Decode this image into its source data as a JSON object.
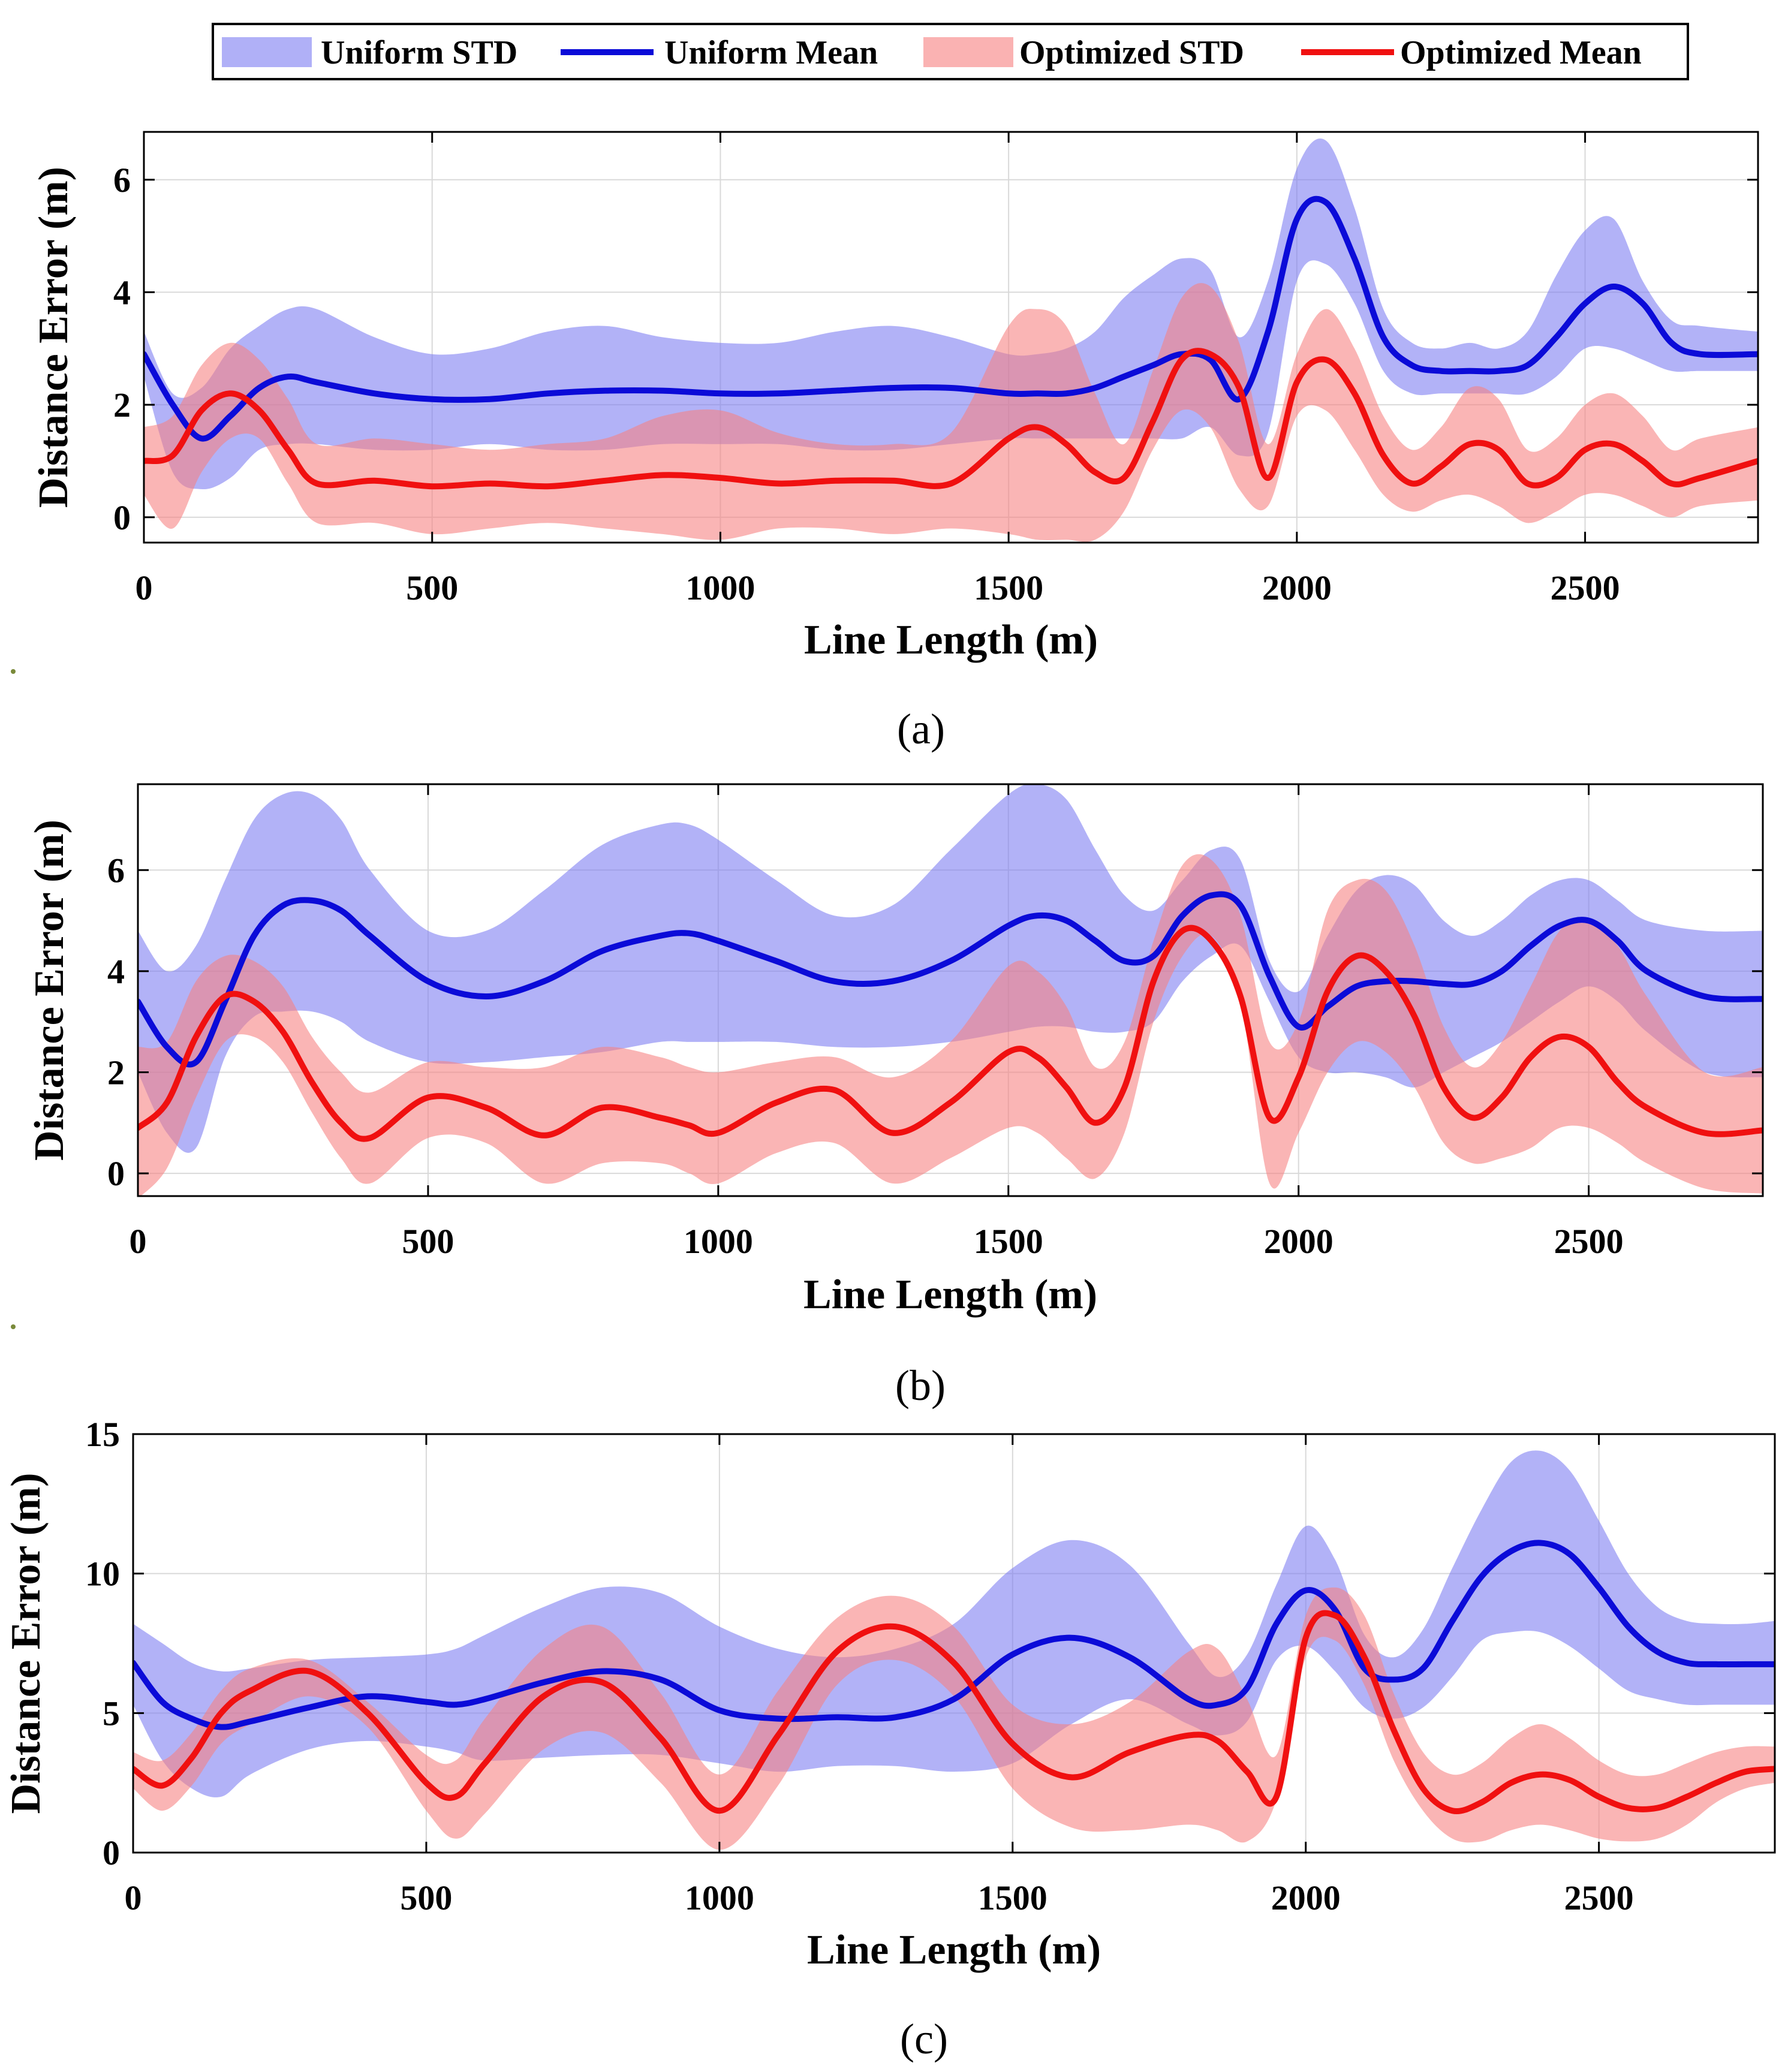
{
  "legend": {
    "items": [
      {
        "label": "Uniform STD",
        "kind": "band",
        "color": "#7b7bf2"
      },
      {
        "label": "Uniform Mean",
        "kind": "line",
        "color": "#0b0bd8"
      },
      {
        "label": "Optimized STD",
        "kind": "band",
        "color": "#f77f7f"
      },
      {
        "label": "Optimized Mean",
        "kind": "line",
        "color": "#f01010"
      }
    ]
  },
  "colors": {
    "uniform_band": "#7b7bf2",
    "uniform_line": "#0b0bd8",
    "optimized_band": "#f77f7f",
    "optimized_line": "#f01010"
  },
  "chart_data": [
    {
      "type": "area",
      "panel_label": "(a)",
      "xlabel": "Line Length (m)",
      "ylabel": "Distance Error (m)",
      "xlim": [
        0,
        2800
      ],
      "ylim": [
        -0.45,
        6.85
      ],
      "xticks": [
        0,
        500,
        1000,
        1500,
        2000,
        2500
      ],
      "yticks": [
        0,
        2,
        4,
        6
      ],
      "grid": true,
      "x": [
        0,
        50,
        100,
        150,
        200,
        250,
        300,
        400,
        500,
        600,
        700,
        800,
        900,
        1000,
        1100,
        1200,
        1300,
        1400,
        1500,
        1550,
        1600,
        1650,
        1700,
        1750,
        1800,
        1850,
        1900,
        1950,
        2000,
        2050,
        2100,
        2150,
        2200,
        2250,
        2300,
        2350,
        2400,
        2450,
        2500,
        2550,
        2600,
        2650,
        2700,
        2800
      ],
      "series": [
        {
          "name": "Uniform STD",
          "kind": "band",
          "upper": [
            3.3,
            2.2,
            2.3,
            3.0,
            3.4,
            3.7,
            3.7,
            3.2,
            2.9,
            3.0,
            3.3,
            3.4,
            3.2,
            3.1,
            3.1,
            3.3,
            3.4,
            3.2,
            2.9,
            2.9,
            3.0,
            3.3,
            3.9,
            4.3,
            4.6,
            4.4,
            3.2,
            4.2,
            6.2,
            6.7,
            5.5,
            3.7,
            3.1,
            3.0,
            3.1,
            3.0,
            3.3,
            4.3,
            5.1,
            5.3,
            4.2,
            3.5,
            3.4,
            3.3
          ],
          "lower": [
            2.5,
            0.8,
            0.5,
            0.7,
            1.2,
            1.3,
            1.3,
            1.2,
            1.2,
            1.3,
            1.2,
            1.2,
            1.3,
            1.3,
            1.3,
            1.2,
            1.2,
            1.3,
            1.4,
            1.4,
            1.4,
            1.4,
            1.4,
            1.4,
            1.4,
            1.6,
            1.1,
            1.5,
            4.2,
            4.5,
            3.8,
            2.6,
            2.2,
            2.2,
            2.2,
            2.2,
            2.2,
            2.5,
            3.0,
            3.0,
            2.8,
            2.6,
            2.6,
            2.6
          ]
        },
        {
          "name": "Uniform Mean",
          "kind": "line",
          "values": [
            2.9,
            2.0,
            1.4,
            1.8,
            2.3,
            2.5,
            2.4,
            2.2,
            2.1,
            2.1,
            2.2,
            2.25,
            2.25,
            2.2,
            2.2,
            2.25,
            2.3,
            2.3,
            2.2,
            2.2,
            2.2,
            2.3,
            2.5,
            2.7,
            2.9,
            2.8,
            2.1,
            3.3,
            5.3,
            5.6,
            4.6,
            3.2,
            2.7,
            2.6,
            2.6,
            2.6,
            2.7,
            3.2,
            3.8,
            4.1,
            3.8,
            3.1,
            2.9,
            2.9
          ]
        },
        {
          "name": "Optimized STD",
          "kind": "band",
          "upper": [
            1.6,
            1.8,
            2.7,
            3.1,
            2.8,
            2.1,
            1.3,
            1.4,
            1.3,
            1.2,
            1.3,
            1.4,
            1.8,
            1.9,
            1.5,
            1.3,
            1.3,
            1.5,
            3.4,
            3.7,
            3.4,
            2.2,
            1.3,
            2.6,
            3.9,
            4.1,
            3.1,
            1.3,
            2.9,
            3.7,
            3.0,
            1.8,
            1.2,
            1.6,
            2.3,
            2.1,
            1.2,
            1.4,
            2.0,
            2.2,
            1.8,
            1.2,
            1.4,
            1.6
          ],
          "lower": [
            0.4,
            -0.2,
            0.8,
            1.4,
            1.4,
            0.6,
            -0.1,
            -0.1,
            -0.3,
            -0.2,
            -0.1,
            -0.2,
            -0.3,
            -0.4,
            -0.2,
            -0.2,
            -0.3,
            -0.2,
            -0.3,
            -0.4,
            -0.4,
            -0.4,
            0.1,
            1.2,
            1.9,
            1.6,
            0.5,
            0.2,
            1.8,
            1.9,
            1.2,
            0.4,
            0.1,
            0.3,
            0.4,
            0.2,
            -0.1,
            0.1,
            0.4,
            0.4,
            0.2,
            0.0,
            0.2,
            0.3
          ]
        },
        {
          "name": "Optimized Mean",
          "kind": "line",
          "values": [
            1.0,
            1.1,
            1.9,
            2.2,
            1.9,
            1.2,
            0.6,
            0.65,
            0.55,
            0.6,
            0.55,
            0.65,
            0.75,
            0.7,
            0.6,
            0.65,
            0.65,
            0.6,
            1.4,
            1.6,
            1.3,
            0.8,
            0.7,
            1.7,
            2.8,
            2.9,
            2.3,
            0.7,
            2.4,
            2.8,
            2.2,
            1.1,
            0.6,
            0.9,
            1.3,
            1.2,
            0.6,
            0.7,
            1.2,
            1.3,
            1.0,
            0.6,
            0.7,
            1.0
          ]
        }
      ]
    },
    {
      "type": "area",
      "panel_label": "(b)",
      "xlabel": "Line Length (m)",
      "ylabel": "Distance Error (m)",
      "xlim": [
        0,
        2800
      ],
      "ylim": [
        -0.45,
        7.7
      ],
      "xticks": [
        0,
        500,
        1000,
        1500,
        2000,
        2500
      ],
      "yticks": [
        0,
        2,
        4,
        6
      ],
      "grid": true,
      "x": [
        0,
        50,
        100,
        150,
        200,
        250,
        300,
        350,
        400,
        500,
        600,
        700,
        800,
        900,
        950,
        1000,
        1100,
        1200,
        1300,
        1400,
        1500,
        1550,
        1600,
        1650,
        1700,
        1750,
        1800,
        1850,
        1900,
        1950,
        2000,
        2050,
        2100,
        2150,
        2200,
        2250,
        2300,
        2350,
        2400,
        2450,
        2500,
        2550,
        2600,
        2700,
        2800
      ],
      "series": [
        {
          "name": "Uniform STD",
          "kind": "band",
          "upper": [
            4.8,
            4.0,
            4.5,
            5.8,
            7.0,
            7.5,
            7.5,
            7.0,
            6.0,
            4.8,
            4.8,
            5.6,
            6.5,
            6.9,
            6.9,
            6.6,
            5.8,
            5.1,
            5.3,
            6.4,
            7.5,
            7.7,
            7.4,
            6.4,
            5.5,
            5.2,
            5.8,
            6.4,
            6.2,
            4.2,
            3.6,
            4.7,
            5.6,
            5.9,
            5.7,
            5.0,
            4.7,
            5.0,
            5.5,
            5.8,
            5.8,
            5.4,
            5.0,
            4.8,
            4.8
          ],
          "lower": [
            2.0,
            0.8,
            0.5,
            2.3,
            3.1,
            3.2,
            3.2,
            3.0,
            2.6,
            2.2,
            2.2,
            2.3,
            2.4,
            2.6,
            2.6,
            2.6,
            2.6,
            2.5,
            2.5,
            2.6,
            2.8,
            2.9,
            2.9,
            2.8,
            2.8,
            3.0,
            3.8,
            4.3,
            4.5,
            3.4,
            2.3,
            2.0,
            2.0,
            1.9,
            1.7,
            2.0,
            2.3,
            2.6,
            3.0,
            3.4,
            3.7,
            3.4,
            2.8,
            2.0,
            1.9
          ]
        },
        {
          "name": "Uniform Mean",
          "kind": "line",
          "values": [
            3.4,
            2.5,
            2.2,
            3.4,
            4.7,
            5.3,
            5.4,
            5.2,
            4.7,
            3.8,
            3.5,
            3.8,
            4.4,
            4.7,
            4.75,
            4.6,
            4.2,
            3.8,
            3.8,
            4.2,
            4.9,
            5.1,
            5.0,
            4.6,
            4.2,
            4.3,
            5.1,
            5.5,
            5.3,
            3.9,
            2.9,
            3.3,
            3.7,
            3.8,
            3.8,
            3.75,
            3.75,
            4.0,
            4.5,
            4.9,
            5.0,
            4.6,
            4.0,
            3.5,
            3.45
          ]
        },
        {
          "name": "Optimized STD",
          "kind": "band",
          "upper": [
            2.5,
            2.6,
            3.8,
            4.3,
            4.2,
            3.7,
            2.7,
            2.0,
            1.6,
            2.2,
            2.1,
            2.1,
            2.5,
            2.3,
            2.1,
            2.0,
            2.2,
            2.3,
            1.9,
            2.6,
            4.1,
            4.0,
            3.3,
            2.1,
            2.6,
            4.6,
            6.1,
            6.2,
            5.1,
            2.6,
            3.0,
            5.2,
            5.8,
            5.6,
            4.5,
            2.9,
            2.1,
            2.6,
            3.7,
            4.8,
            5.0,
            4.5,
            3.5,
            2.0,
            2.1
          ],
          "lower": [
            -0.5,
            0.1,
            1.5,
            2.6,
            2.7,
            2.2,
            1.2,
            0.3,
            -0.2,
            0.7,
            0.6,
            -0.2,
            0.2,
            0.2,
            0.0,
            -0.2,
            0.4,
            0.6,
            -0.2,
            0.3,
            0.9,
            0.8,
            0.3,
            -0.1,
            0.8,
            3.0,
            4.3,
            4.7,
            3.4,
            -0.2,
            0.8,
            2.0,
            2.6,
            2.4,
            1.7,
            0.6,
            0.2,
            0.3,
            0.5,
            0.9,
            0.9,
            0.6,
            0.2,
            -0.3,
            -0.4
          ]
        },
        {
          "name": "Optimized Mean",
          "kind": "line",
          "values": [
            0.9,
            1.4,
            2.7,
            3.5,
            3.4,
            2.8,
            1.8,
            1.0,
            0.7,
            1.5,
            1.3,
            0.75,
            1.3,
            1.1,
            0.95,
            0.8,
            1.4,
            1.65,
            0.8,
            1.4,
            2.4,
            2.3,
            1.7,
            1.0,
            1.7,
            3.8,
            4.8,
            4.6,
            3.5,
            1.1,
            1.9,
            3.6,
            4.3,
            4.0,
            3.1,
            1.7,
            1.1,
            1.5,
            2.3,
            2.7,
            2.5,
            1.8,
            1.3,
            0.8,
            0.85
          ]
        }
      ]
    },
    {
      "type": "area",
      "panel_label": "(c)",
      "xlabel": "Line Length (m)",
      "ylabel": "Distance Error (m)",
      "xlim": [
        0,
        2800
      ],
      "ylim": [
        0,
        15
      ],
      "xticks": [
        0,
        500,
        1000,
        1500,
        2000,
        2500
      ],
      "yticks": [
        0,
        5,
        10,
        15
      ],
      "grid": true,
      "x": [
        0,
        50,
        100,
        150,
        200,
        300,
        400,
        500,
        550,
        600,
        700,
        800,
        900,
        1000,
        1100,
        1200,
        1300,
        1400,
        1500,
        1600,
        1700,
        1800,
        1850,
        1900,
        1950,
        2000,
        2050,
        2100,
        2150,
        2200,
        2250,
        2300,
        2350,
        2400,
        2450,
        2500,
        2550,
        2600,
        2650,
        2700,
        2750,
        2800
      ],
      "series": [
        {
          "name": "Uniform STD",
          "kind": "band",
          "upper": [
            8.2,
            7.5,
            6.8,
            6.5,
            6.6,
            6.9,
            7.0,
            7.1,
            7.3,
            7.8,
            8.8,
            9.5,
            9.3,
            8.1,
            7.3,
            7.0,
            7.3,
            8.2,
            10.2,
            11.2,
            10.3,
            7.5,
            6.3,
            7.1,
            9.6,
            11.7,
            10.5,
            7.8,
            7.0,
            8.0,
            10.2,
            12.3,
            14.0,
            14.4,
            13.7,
            11.9,
            10.0,
            8.8,
            8.3,
            8.2,
            8.2,
            8.3
          ],
          "lower": [
            5.3,
            3.3,
            2.3,
            2.0,
            2.8,
            3.7,
            4.0,
            3.8,
            3.6,
            3.3,
            3.4,
            3.5,
            3.5,
            3.2,
            2.9,
            3.1,
            3.1,
            2.9,
            3.2,
            4.6,
            5.5,
            4.6,
            4.2,
            4.7,
            6.9,
            7.4,
            6.5,
            5.2,
            4.8,
            5.2,
            6.3,
            7.6,
            7.9,
            7.9,
            7.4,
            6.6,
            5.8,
            5.5,
            5.3,
            5.3,
            5.3,
            5.3
          ],
          "note": "approximate"
        },
        {
          "name": "Uniform Mean",
          "kind": "line",
          "values": [
            6.8,
            5.4,
            4.8,
            4.5,
            4.7,
            5.2,
            5.6,
            5.4,
            5.3,
            5.5,
            6.1,
            6.5,
            6.2,
            5.1,
            4.8,
            4.85,
            4.85,
            5.5,
            7.1,
            7.7,
            7.0,
            5.5,
            5.3,
            5.9,
            8.2,
            9.4,
            8.7,
            6.6,
            6.2,
            6.6,
            8.3,
            9.9,
            10.8,
            11.1,
            10.7,
            9.5,
            8.1,
            7.2,
            6.8,
            6.75,
            6.75,
            6.75
          ]
        },
        {
          "name": "Optimized STD",
          "kind": "band",
          "upper": [
            3.6,
            3.3,
            4.3,
            5.8,
            6.6,
            6.9,
            5.4,
            3.5,
            3.3,
            4.8,
            7.3,
            8.1,
            5.7,
            2.8,
            5.8,
            8.4,
            9.2,
            8.1,
            5.3,
            4.6,
            5.4,
            7.2,
            7.3,
            5.5,
            3.5,
            8.5,
            9.5,
            8.5,
            5.7,
            3.6,
            2.8,
            3.2,
            4.1,
            4.6,
            4.1,
            3.3,
            2.8,
            2.8,
            3.2,
            3.6,
            3.8,
            3.8
          ],
          "lower": [
            2.3,
            1.5,
            2.4,
            3.9,
            4.6,
            5.6,
            4.5,
            1.5,
            0.5,
            1.4,
            3.7,
            4.3,
            2.5,
            0.1,
            2.4,
            6.0,
            6.9,
            5.6,
            2.3,
            0.9,
            0.8,
            1.0,
            0.8,
            0.4,
            1.9,
            7.0,
            7.6,
            6.0,
            3.3,
            1.5,
            0.5,
            0.4,
            0.8,
            1.0,
            0.8,
            0.5,
            0.4,
            0.5,
            1.0,
            1.8,
            2.3,
            2.5
          ],
          "note": "approximate"
        },
        {
          "name": "Optimized Mean",
          "kind": "line",
          "values": [
            3.0,
            2.4,
            3.4,
            5.0,
            5.8,
            6.5,
            5.0,
            2.5,
            2.0,
            3.2,
            5.6,
            6.1,
            4.1,
            1.5,
            4.2,
            7.2,
            8.1,
            6.8,
            3.9,
            2.7,
            3.6,
            4.2,
            4.0,
            2.9,
            2.0,
            7.7,
            8.5,
            7.0,
            4.4,
            2.3,
            1.5,
            1.8,
            2.5,
            2.8,
            2.6,
            2.0,
            1.6,
            1.6,
            2.0,
            2.5,
            2.9,
            3.0
          ]
        }
      ]
    }
  ]
}
